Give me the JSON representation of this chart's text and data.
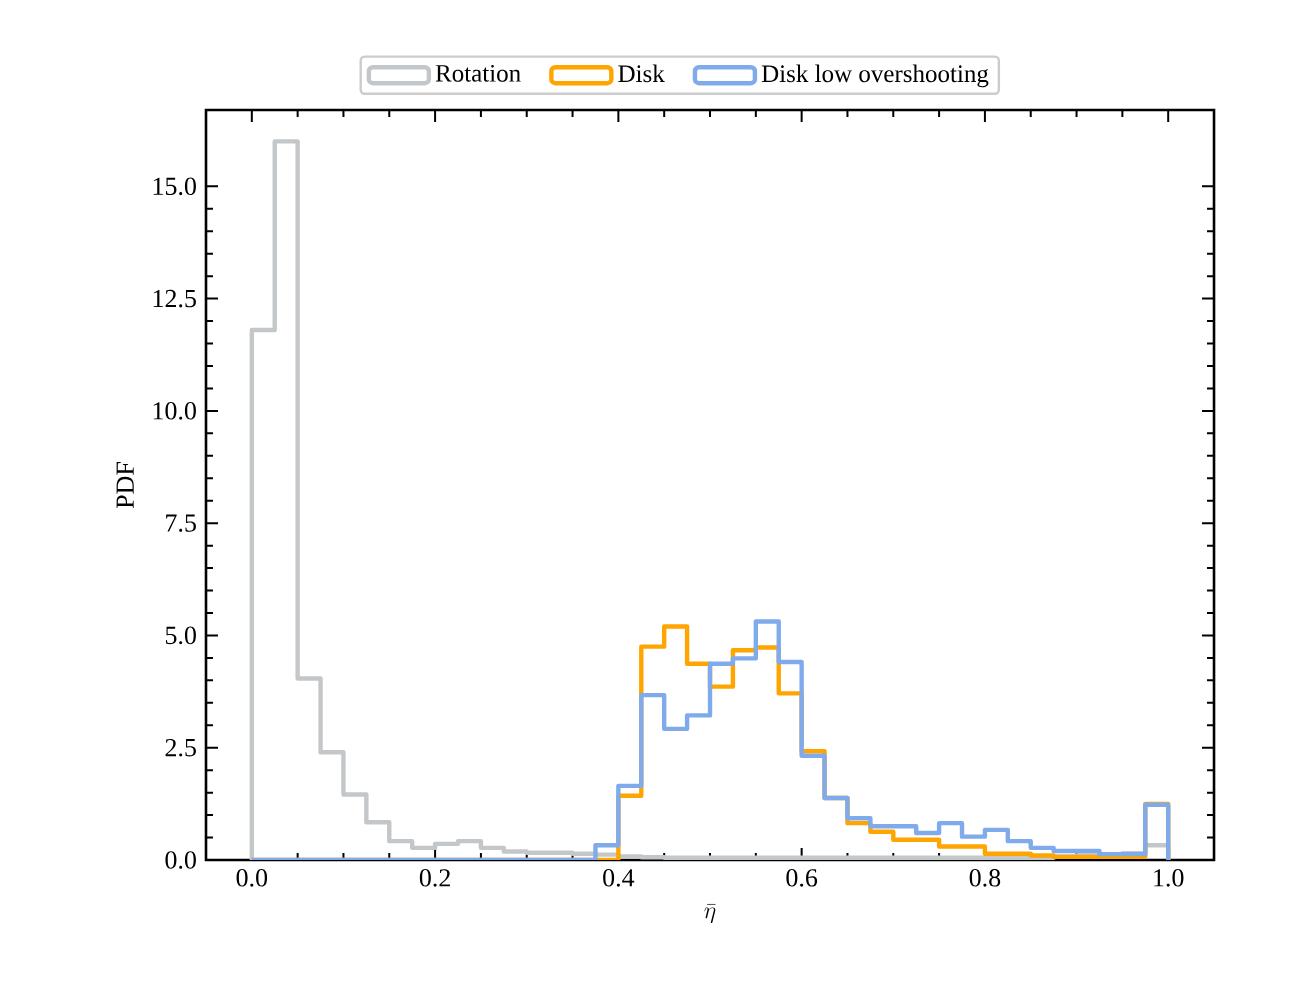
{
  "chart_data": {
    "type": "histogram",
    "xlabel": "\\bar{\\eta}",
    "ylabel": "PDF",
    "bins": [
      0,
      0.025,
      0.05,
      0.075,
      0.1,
      0.125,
      0.15,
      0.175,
      0.2,
      0.225,
      0.25,
      0.275,
      0.3,
      0.325,
      0.35,
      0.375,
      0.4,
      0.425,
      0.45,
      0.475,
      0.5,
      0.525,
      0.55,
      0.575,
      0.6,
      0.625,
      0.65,
      0.675,
      0.7,
      0.725,
      0.75,
      0.775,
      0.8,
      0.825,
      0.85,
      0.875,
      0.9,
      0.925,
      0.95,
      0.975,
      1.0
    ],
    "series": [
      {
        "name": "Rotation",
        "color": "#c4c7ca",
        "values": [
          11.8,
          16.0,
          4.04,
          2.4,
          1.46,
          0.84,
          0.42,
          0.27,
          0.36,
          0.42,
          0.27,
          0.19,
          0.16,
          0.16,
          0.14,
          0.12,
          0.08,
          0.06,
          0.05,
          0.05,
          0.05,
          0.05,
          0.05,
          0.05,
          0.05,
          0.05,
          0.05,
          0.05,
          0.05,
          0.05,
          0.05,
          0.05,
          0.05,
          0.05,
          0.05,
          0.08,
          0.1,
          0.1,
          0.15,
          0.33
        ]
      },
      {
        "name": "Disk",
        "color": "#ffa500",
        "values": [
          0,
          0,
          0,
          0,
          0,
          0,
          0,
          0,
          0,
          0,
          0,
          0,
          0,
          0,
          0,
          0,
          1.43,
          4.75,
          5.2,
          4.37,
          3.86,
          4.67,
          4.73,
          3.71,
          2.42,
          1.38,
          0.82,
          0.63,
          0.45,
          0.45,
          0.3,
          0.3,
          0.14,
          0.14,
          0.1,
          0.07,
          0.07,
          0.07,
          0.07,
          1.25
        ]
      },
      {
        "name": "Disk low overshooting",
        "color": "#7fabec",
        "values": [
          0,
          0,
          0,
          0,
          0,
          0,
          0,
          0,
          0,
          0,
          0,
          0,
          0,
          0,
          0,
          0.33,
          1.65,
          3.67,
          2.92,
          3.22,
          4.37,
          4.49,
          5.31,
          4.41,
          2.32,
          1.38,
          0.93,
          0.75,
          0.75,
          0.6,
          0.82,
          0.52,
          0.67,
          0.42,
          0.27,
          0.2,
          0.2,
          0.13,
          0.13,
          1.23
        ]
      }
    ],
    "xlim": [
      -0.05,
      1.05
    ],
    "ylim": [
      0,
      16.7
    ],
    "xticks": [
      {
        "value": 0,
        "label": "0.0"
      },
      {
        "value": 0.2,
        "label": "0.2"
      },
      {
        "value": 0.4,
        "label": "0.4"
      },
      {
        "value": 0.6,
        "label": "0.6"
      },
      {
        "value": 0.8,
        "label": "0.8"
      },
      {
        "value": 1.0,
        "label": "1.0"
      }
    ],
    "yticks": [
      {
        "value": 0,
        "label": "0.0"
      },
      {
        "value": 2.5,
        "label": "2.5"
      },
      {
        "value": 5,
        "label": "5.0"
      },
      {
        "value": 7.5,
        "label": "7.5"
      },
      {
        "value": 10,
        "label": "10.0"
      },
      {
        "value": 12.5,
        "label": "12.5"
      },
      {
        "value": 15,
        "label": "15.0"
      }
    ],
    "legend": "top",
    "grid": false
  }
}
